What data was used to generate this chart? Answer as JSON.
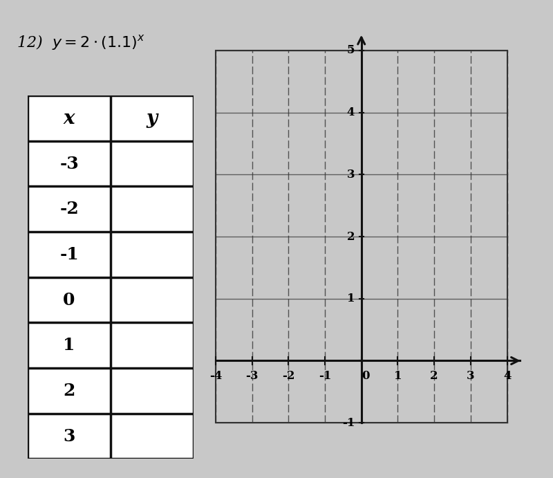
{
  "title": "12)  $y = 2 \\cdot (1.1)^x$",
  "x_values": [
    -3,
    -2,
    -1,
    0,
    1,
    2,
    3
  ],
  "table_x_label": "x",
  "table_y_label": "y",
  "grid_xlim": [
    -4,
    4
  ],
  "grid_ylim": [
    -1,
    5
  ],
  "grid_xticks": [
    -4,
    -3,
    -2,
    -1,
    0,
    1,
    2,
    3,
    4
  ],
  "grid_yticks": [
    -1,
    0,
    1,
    2,
    3,
    4,
    5
  ],
  "bg_color": "#c8c8c8",
  "paper_color": "#ffffff",
  "graph_paper_color": "#ebebeb",
  "grid_color": "#333333",
  "axis_color": "#111111",
  "table_border_color": "#111111",
  "title_fontsize": 16,
  "tick_fontsize": 12
}
